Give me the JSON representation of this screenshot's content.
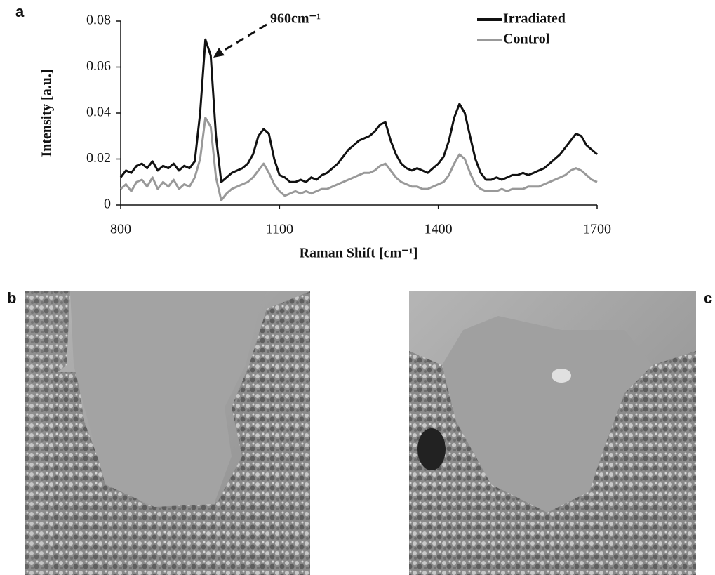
{
  "panel_labels": [
    "a",
    "b",
    "c"
  ],
  "chart_data": {
    "type": "line",
    "y_label": "Intensity [a.u.]",
    "x_label": "Raman Shift [cm⁻¹]",
    "annotation": "960cm⁻¹",
    "xlim": [
      800,
      1700
    ],
    "xticks": [
      800,
      1100,
      1400,
      1700
    ],
    "ylim": [
      0,
      0.08
    ],
    "yticks": [
      0,
      0.02,
      0.04,
      0.06,
      0.08
    ],
    "legend": "top-right",
    "x": [
      800,
      810,
      820,
      830,
      840,
      850,
      860,
      870,
      880,
      890,
      900,
      910,
      920,
      930,
      940,
      950,
      960,
      970,
      980,
      990,
      1000,
      1010,
      1020,
      1030,
      1040,
      1050,
      1060,
      1070,
      1080,
      1090,
      1100,
      1110,
      1120,
      1130,
      1140,
      1150,
      1160,
      1170,
      1180,
      1190,
      1200,
      1210,
      1220,
      1230,
      1240,
      1250,
      1260,
      1270,
      1280,
      1290,
      1300,
      1310,
      1320,
      1330,
      1340,
      1350,
      1360,
      1370,
      1380,
      1390,
      1400,
      1410,
      1420,
      1430,
      1440,
      1450,
      1460,
      1470,
      1480,
      1490,
      1500,
      1510,
      1520,
      1530,
      1540,
      1550,
      1560,
      1570,
      1580,
      1590,
      1600,
      1610,
      1620,
      1630,
      1640,
      1650,
      1660,
      1670,
      1680,
      1690,
      1700
    ],
    "series": [
      {
        "name": "Irradiated",
        "color": "#111111",
        "values": [
          0.012,
          0.015,
          0.014,
          0.017,
          0.018,
          0.016,
          0.019,
          0.015,
          0.017,
          0.016,
          0.018,
          0.015,
          0.017,
          0.016,
          0.019,
          0.04,
          0.072,
          0.065,
          0.03,
          0.01,
          0.012,
          0.014,
          0.015,
          0.016,
          0.018,
          0.022,
          0.03,
          0.033,
          0.031,
          0.02,
          0.013,
          0.012,
          0.01,
          0.01,
          0.011,
          0.01,
          0.012,
          0.011,
          0.013,
          0.014,
          0.016,
          0.018,
          0.021,
          0.024,
          0.026,
          0.028,
          0.029,
          0.03,
          0.032,
          0.035,
          0.036,
          0.028,
          0.022,
          0.018,
          0.016,
          0.015,
          0.016,
          0.015,
          0.014,
          0.016,
          0.018,
          0.021,
          0.028,
          0.038,
          0.044,
          0.04,
          0.03,
          0.02,
          0.014,
          0.011,
          0.011,
          0.012,
          0.011,
          0.012,
          0.013,
          0.013,
          0.014,
          0.013,
          0.014,
          0.015,
          0.016,
          0.018,
          0.02,
          0.022,
          0.025,
          0.028,
          0.031,
          0.03,
          0.026,
          0.024,
          0.022
        ]
      },
      {
        "name": "Control",
        "color": "#999999",
        "values": [
          0.007,
          0.009,
          0.006,
          0.01,
          0.011,
          0.008,
          0.012,
          0.007,
          0.01,
          0.008,
          0.011,
          0.007,
          0.009,
          0.008,
          0.012,
          0.02,
          0.038,
          0.034,
          0.012,
          0.002,
          0.005,
          0.007,
          0.008,
          0.009,
          0.01,
          0.012,
          0.015,
          0.018,
          0.014,
          0.009,
          0.006,
          0.004,
          0.005,
          0.006,
          0.005,
          0.006,
          0.005,
          0.006,
          0.007,
          0.007,
          0.008,
          0.009,
          0.01,
          0.011,
          0.012,
          0.013,
          0.014,
          0.014,
          0.015,
          0.017,
          0.018,
          0.015,
          0.012,
          0.01,
          0.009,
          0.008,
          0.008,
          0.007,
          0.007,
          0.008,
          0.009,
          0.01,
          0.013,
          0.018,
          0.022,
          0.02,
          0.014,
          0.009,
          0.007,
          0.006,
          0.006,
          0.006,
          0.007,
          0.006,
          0.007,
          0.007,
          0.007,
          0.008,
          0.008,
          0.008,
          0.009,
          0.01,
          0.011,
          0.012,
          0.013,
          0.015,
          0.016,
          0.015,
          0.013,
          0.011,
          0.01
        ]
      }
    ]
  }
}
